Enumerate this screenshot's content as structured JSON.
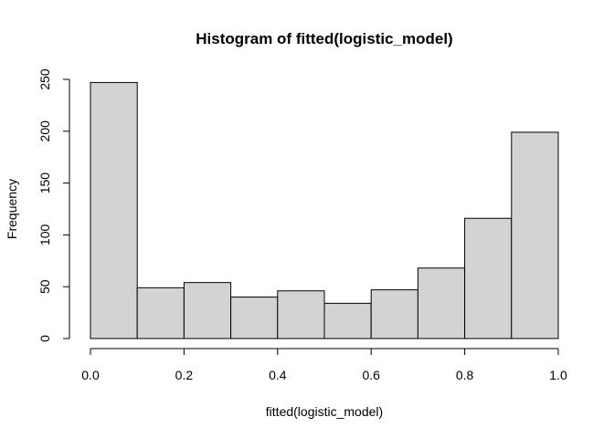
{
  "chart_data": {
    "type": "bar",
    "title": "Histogram of fitted(logistic_model)",
    "xlabel": "fitted(logistic_model)",
    "ylabel": "Frequency",
    "bins": [
      {
        "from": 0.0,
        "to": 0.1,
        "count": 247
      },
      {
        "from": 0.1,
        "to": 0.2,
        "count": 49
      },
      {
        "from": 0.2,
        "to": 0.3,
        "count": 54
      },
      {
        "from": 0.3,
        "to": 0.4,
        "count": 40
      },
      {
        "from": 0.4,
        "to": 0.5,
        "count": 46
      },
      {
        "from": 0.5,
        "to": 0.6,
        "count": 34
      },
      {
        "from": 0.6,
        "to": 0.7,
        "count": 47
      },
      {
        "from": 0.7,
        "to": 0.8,
        "count": 68
      },
      {
        "from": 0.8,
        "to": 0.9,
        "count": 116
      },
      {
        "from": 0.9,
        "to": 1.0,
        "count": 199
      }
    ],
    "xlim": [
      0.0,
      1.0
    ],
    "ylim": [
      0,
      250
    ],
    "x_ticks": [
      {
        "value": 0.0,
        "label": "0.0"
      },
      {
        "value": 0.2,
        "label": "0.2"
      },
      {
        "value": 0.4,
        "label": "0.4"
      },
      {
        "value": 0.6,
        "label": "0.6"
      },
      {
        "value": 0.8,
        "label": "0.8"
      },
      {
        "value": 1.0,
        "label": "1.0"
      }
    ],
    "y_ticks": [
      {
        "value": 0,
        "label": "0"
      },
      {
        "value": 50,
        "label": "50"
      },
      {
        "value": 100,
        "label": "100"
      },
      {
        "value": 150,
        "label": "150"
      },
      {
        "value": 200,
        "label": "200"
      },
      {
        "value": 250,
        "label": "250"
      }
    ],
    "grid": false,
    "colors": {
      "bar_fill": "#d3d3d3",
      "bar_stroke": "#000000"
    }
  }
}
